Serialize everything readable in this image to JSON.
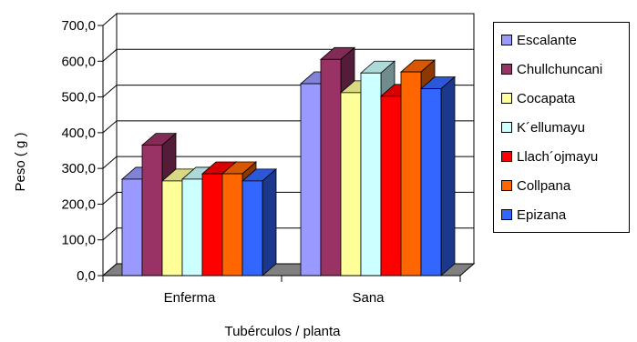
{
  "chart_data": {
    "type": "bar",
    "categories": [
      "Enferma",
      "Sana"
    ],
    "series": [
      {
        "name": "Escalante",
        "values": [
          270,
          537
        ],
        "color": "#9999FF"
      },
      {
        "name": "Chullchuncani",
        "values": [
          365,
          605
        ],
        "color": "#993366"
      },
      {
        "name": "Cocapata",
        "values": [
          265,
          512
        ],
        "color": "#FFFF99"
      },
      {
        "name": "K´ellumayu",
        "values": [
          270,
          567
        ],
        "color": "#CCFFFF"
      },
      {
        "name": "Llach´ojmayu",
        "values": [
          285,
          502
        ],
        "color": "#FF0000"
      },
      {
        "name": "Collpana",
        "values": [
          285,
          570
        ],
        "color": "#FF6600"
      },
      {
        "name": "Epizana",
        "values": [
          265,
          523
        ],
        "color": "#3366FF"
      }
    ],
    "xlabel": "Tubérculos / planta",
    "ylabel": "Peso ( g )",
    "ylim": [
      0,
      700
    ],
    "yticks": [
      "0,0",
      "100,0",
      "200,0",
      "300,0",
      "400,0",
      "500,0",
      "600,0",
      "700,0"
    ],
    "grid": true,
    "legend_position": "right"
  }
}
